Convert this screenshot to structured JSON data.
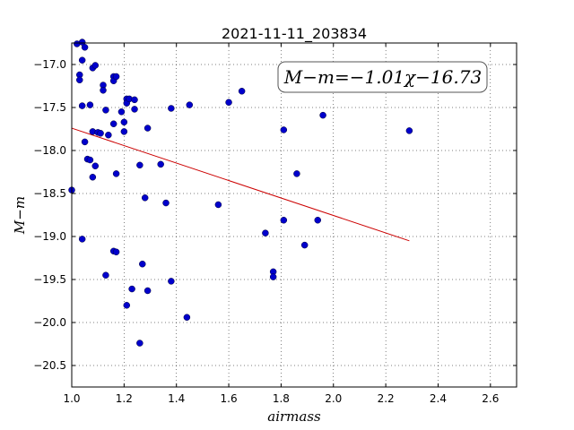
{
  "chart_data": {
    "type": "scatter",
    "title": "2021-11-11_203834",
    "xlabel": "airmass",
    "ylabel": "M−m",
    "xlim": [
      1.0,
      2.7
    ],
    "ylim": [
      -20.75,
      -16.75
    ],
    "y_inverted": true,
    "grid": true,
    "xticks": [
      1.0,
      1.2,
      1.4,
      1.6,
      1.8,
      2.0,
      2.2,
      2.4,
      2.6
    ],
    "xtick_labels": [
      "1.0",
      "1.2",
      "1.4",
      "1.6",
      "1.8",
      "2.0",
      "2.2",
      "2.4",
      "2.6"
    ],
    "yticks": [
      -17.0,
      -17.5,
      -18.0,
      -18.5,
      -19.0,
      -19.5,
      -20.0,
      -20.5
    ],
    "ytick_labels": [
      "−17.0",
      "−17.5",
      "−18.0",
      "−18.5",
      "−19.0",
      "−19.5",
      "−20.0",
      "−20.5"
    ],
    "point_color": "#0000cc",
    "fit_color": "#cc0000",
    "annotation": "M−m=−1.01χ−16.73",
    "fit_line": {
      "x": [
        1.0,
        2.29
      ],
      "y": [
        -17.74,
        -19.05
      ]
    },
    "points": [
      [
        1.0,
        -18.46
      ],
      [
        1.02,
        -16.76
      ],
      [
        1.03,
        -17.12
      ],
      [
        1.03,
        -17.18
      ],
      [
        1.04,
        -16.74
      ],
      [
        1.04,
        -19.03
      ],
      [
        1.04,
        -16.95
      ],
      [
        1.04,
        -17.48
      ],
      [
        1.05,
        -16.8
      ],
      [
        1.05,
        -17.9
      ],
      [
        1.06,
        -18.1
      ],
      [
        1.07,
        -18.11
      ],
      [
        1.07,
        -17.47
      ],
      [
        1.08,
        -17.78
      ],
      [
        1.08,
        -18.31
      ],
      [
        1.08,
        -17.04
      ],
      [
        1.09,
        -17.01
      ],
      [
        1.09,
        -18.18
      ],
      [
        1.1,
        -17.79
      ],
      [
        1.11,
        -17.8
      ],
      [
        1.12,
        -17.24
      ],
      [
        1.12,
        -17.3
      ],
      [
        1.13,
        -17.53
      ],
      [
        1.13,
        -19.45
      ],
      [
        1.14,
        -17.82
      ],
      [
        1.16,
        -17.69
      ],
      [
        1.16,
        -17.14
      ],
      [
        1.16,
        -17.19
      ],
      [
        1.17,
        -17.14
      ],
      [
        1.16,
        -19.17
      ],
      [
        1.17,
        -19.18
      ],
      [
        1.17,
        -18.27
      ],
      [
        1.19,
        -17.55
      ],
      [
        1.2,
        -17.67
      ],
      [
        1.2,
        -17.78
      ],
      [
        1.21,
        -17.4
      ],
      [
        1.21,
        -17.45
      ],
      [
        1.21,
        -19.8
      ],
      [
        1.22,
        -17.4
      ],
      [
        1.23,
        -19.61
      ],
      [
        1.24,
        -17.41
      ],
      [
        1.24,
        -17.52
      ],
      [
        1.26,
        -18.17
      ],
      [
        1.26,
        -20.24
      ],
      [
        1.27,
        -19.32
      ],
      [
        1.28,
        -18.55
      ],
      [
        1.29,
        -17.74
      ],
      [
        1.29,
        -19.63
      ],
      [
        1.34,
        -18.16
      ],
      [
        1.36,
        -18.61
      ],
      [
        1.38,
        -17.51
      ],
      [
        1.38,
        -19.52
      ],
      [
        1.44,
        -19.94
      ],
      [
        1.45,
        -17.47
      ],
      [
        1.56,
        -18.63
      ],
      [
        1.6,
        -17.44
      ],
      [
        1.65,
        -17.31
      ],
      [
        1.74,
        -18.96
      ],
      [
        1.77,
        -19.41
      ],
      [
        1.77,
        -19.47
      ],
      [
        1.81,
        -17.76
      ],
      [
        1.81,
        -18.81
      ],
      [
        1.86,
        -18.27
      ],
      [
        1.89,
        -19.1
      ],
      [
        1.94,
        -18.81
      ],
      [
        1.96,
        -17.59
      ],
      [
        2.29,
        -17.77
      ]
    ]
  }
}
